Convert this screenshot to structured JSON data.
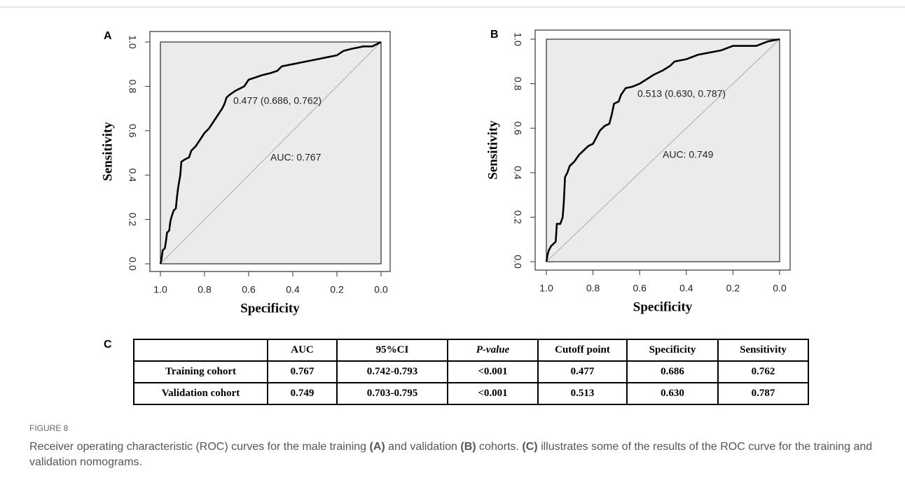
{
  "chart_data": [
    {
      "type": "line",
      "panel_label": "A",
      "x_label": "Specificity",
      "y_label": "Sensitivity",
      "color": "#000000",
      "x": [
        1,
        0.995,
        0.99,
        0.98,
        0.975,
        0.97,
        0.96,
        0.955,
        0.95,
        0.94,
        0.93,
        0.925,
        0.92,
        0.91,
        0.905,
        0.89,
        0.87,
        0.86,
        0.84,
        0.82,
        0.8,
        0.78,
        0.76,
        0.74,
        0.72,
        0.71,
        0.7,
        0.686,
        0.66,
        0.64,
        0.62,
        0.6,
        0.57,
        0.54,
        0.5,
        0.47,
        0.45,
        0.4,
        0.35,
        0.3,
        0.25,
        0.2,
        0.17,
        0.13,
        0.08,
        0.04,
        0.02,
        0
      ],
      "values": [
        0,
        0.02,
        0.06,
        0.07,
        0.1,
        0.14,
        0.15,
        0.19,
        0.21,
        0.24,
        0.25,
        0.3,
        0.34,
        0.4,
        0.46,
        0.47,
        0.48,
        0.51,
        0.53,
        0.56,
        0.59,
        0.61,
        0.64,
        0.67,
        0.7,
        0.72,
        0.75,
        0.762,
        0.78,
        0.79,
        0.8,
        0.83,
        0.84,
        0.85,
        0.86,
        0.87,
        0.89,
        0.9,
        0.91,
        0.92,
        0.93,
        0.94,
        0.96,
        0.97,
        0.98,
        0.98,
        0.99,
        1
      ],
      "xlim": [
        1,
        0
      ],
      "ylim": [
        0,
        1
      ],
      "xticks": [
        {
          "value": 1,
          "label": "1.0"
        },
        0.8,
        0.6,
        0.4,
        0.2,
        {
          "value": 0,
          "label": "0.0"
        }
      ],
      "yticks": [
        {
          "value": 0,
          "label": "0.0"
        },
        0.2,
        0.4,
        0.6,
        0.8,
        {
          "value": 1,
          "label": "1.0"
        }
      ],
      "annotations": [
        "0.477 (0.686, 0.762)",
        "AUC: 0.767"
      ]
    },
    {
      "type": "line",
      "panel_label": "B",
      "x_label": "Specificity",
      "y_label": "Sensitivity",
      "color": "#000000",
      "x": [
        1,
        0.995,
        0.99,
        0.98,
        0.97,
        0.96,
        0.955,
        0.94,
        0.93,
        0.925,
        0.92,
        0.91,
        0.9,
        0.88,
        0.86,
        0.84,
        0.82,
        0.8,
        0.78,
        0.77,
        0.75,
        0.73,
        0.72,
        0.71,
        0.69,
        0.68,
        0.66,
        0.63,
        0.6,
        0.57,
        0.54,
        0.5,
        0.47,
        0.45,
        0.4,
        0.35,
        0.3,
        0.25,
        0.2,
        0.15,
        0.1,
        0.05,
        0
      ],
      "values": [
        0,
        0.03,
        0.05,
        0.07,
        0.08,
        0.09,
        0.17,
        0.17,
        0.2,
        0.27,
        0.38,
        0.4,
        0.43,
        0.45,
        0.48,
        0.5,
        0.52,
        0.53,
        0.57,
        0.59,
        0.61,
        0.62,
        0.66,
        0.71,
        0.72,
        0.75,
        0.78,
        0.787,
        0.8,
        0.82,
        0.84,
        0.86,
        0.88,
        0.9,
        0.91,
        0.93,
        0.94,
        0.95,
        0.97,
        0.97,
        0.97,
        0.99,
        1
      ],
      "xlim": [
        1,
        0
      ],
      "ylim": [
        0,
        1
      ],
      "xticks": [
        {
          "value": 1,
          "label": "1.0"
        },
        0.8,
        0.6,
        0.4,
        0.2,
        {
          "value": 0,
          "label": "0.0"
        }
      ],
      "yticks": [
        {
          "value": 0,
          "label": "0.0"
        },
        0.2,
        0.4,
        0.6,
        0.8,
        {
          "value": 1,
          "label": "1.0"
        }
      ],
      "annotations": [
        "0.513 (0.630, 0.787)",
        "AUC: 0.749"
      ]
    }
  ],
  "table": {
    "panel_label": "C",
    "columns": [
      "AUC",
      "95%CI",
      "P-value",
      "Cutoff point",
      "Specificity",
      "Sensitivity"
    ],
    "rows": [
      [
        "Training cohort",
        "0.767",
        "0.742-0.793",
        "<0.001",
        "0.477",
        "0.686",
        "0.762"
      ],
      [
        "Validation cohort",
        "0.749",
        "0.703-0.795",
        "<0.001",
        "0.513",
        "0.630",
        "0.787"
      ]
    ]
  },
  "caption": {
    "label": "FIGURE 8",
    "text": [
      "Receiver operating characteristic (ROC) curves for the male training ",
      "(A)",
      " and validation ",
      "(B)",
      " cohorts. ",
      "(C)",
      " illustrates some of the results of the ROC curve for the training and validation nomograms."
    ]
  }
}
